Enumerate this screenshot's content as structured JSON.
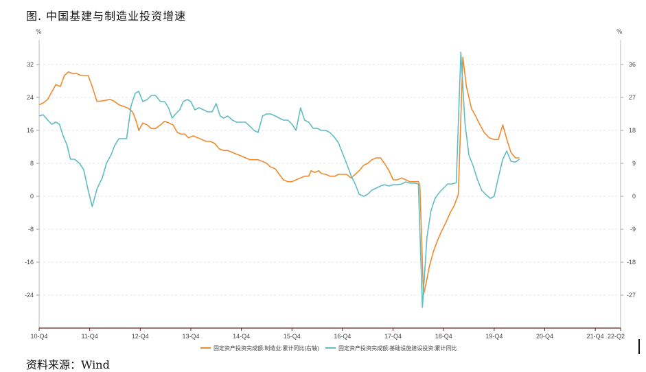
{
  "title": "图. 中国基建与制造业投资增速",
  "source": "资料来源：Wind",
  "chart_data": {
    "type": "line",
    "left_axis": {
      "unit": "%",
      "ticks": [
        -24,
        -16,
        -8,
        0,
        8,
        16,
        24,
        32
      ],
      "range": [
        -32,
        38
      ]
    },
    "right_axis": {
      "unit": "%",
      "ticks": [
        -27,
        -18,
        -9,
        0,
        9,
        18,
        27,
        36
      ],
      "range": [
        -36,
        42.75
      ]
    },
    "x_ticks": [
      "10-Q4",
      "11-Q4",
      "12-Q4",
      "13-Q4",
      "14-Q4",
      "15-Q4",
      "16-Q4",
      "17-Q4",
      "18-Q4",
      "19-Q4",
      "20-Q4",
      "21-Q4",
      "22-Q2"
    ],
    "x_range": [
      0,
      11.5
    ],
    "grid": true,
    "legend_position": "bottom",
    "series": [
      {
        "name": "固定资产投资完成额:制造业:累计同比(右轴)",
        "axis": "right",
        "color": "#ef8a2c",
        "points": [
          [
            0.0,
            25.0
          ],
          [
            0.08,
            25.5
          ],
          [
            0.17,
            26.5
          ],
          [
            0.25,
            28.5
          ],
          [
            0.33,
            30.5
          ],
          [
            0.42,
            30.0
          ],
          [
            0.5,
            33.0
          ],
          [
            0.58,
            34.0
          ],
          [
            0.67,
            33.5
          ],
          [
            0.75,
            33.5
          ],
          [
            0.83,
            33.0
          ],
          [
            0.9,
            33.0
          ],
          [
            0.97,
            33.0
          ],
          [
            1.05,
            30.0
          ],
          [
            1.14,
            26.0
          ],
          [
            1.22,
            26.0
          ],
          [
            1.3,
            26.2
          ],
          [
            1.4,
            26.5
          ],
          [
            1.48,
            26.0
          ],
          [
            1.58,
            25.0
          ],
          [
            1.68,
            24.5
          ],
          [
            1.77,
            24.0
          ],
          [
            1.85,
            23.0
          ],
          [
            1.92,
            20.5
          ],
          [
            1.97,
            18.0
          ],
          [
            2.05,
            20.0
          ],
          [
            2.14,
            19.5
          ],
          [
            2.22,
            18.5
          ],
          [
            2.3,
            18.5
          ],
          [
            2.4,
            19.5
          ],
          [
            2.48,
            20.5
          ],
          [
            2.57,
            20.0
          ],
          [
            2.65,
            19.5
          ],
          [
            2.73,
            17.5
          ],
          [
            2.8,
            17.0
          ],
          [
            2.88,
            17.0
          ],
          [
            2.95,
            16.0
          ],
          [
            3.05,
            16.5
          ],
          [
            3.14,
            16.0
          ],
          [
            3.22,
            15.5
          ],
          [
            3.3,
            15.0
          ],
          [
            3.38,
            15.0
          ],
          [
            3.47,
            14.5
          ],
          [
            3.56,
            13.0
          ],
          [
            3.65,
            12.5
          ],
          [
            3.73,
            12.5
          ],
          [
            3.82,
            12.0
          ],
          [
            3.91,
            11.5
          ],
          [
            4.0,
            11.0
          ],
          [
            4.08,
            10.5
          ],
          [
            4.17,
            10.0
          ],
          [
            4.25,
            10.0
          ],
          [
            4.33,
            10.0
          ],
          [
            4.42,
            9.5
          ],
          [
            4.5,
            9.0
          ],
          [
            4.58,
            8.0
          ],
          [
            4.67,
            7.5
          ],
          [
            4.75,
            6.0
          ],
          [
            4.83,
            4.5
          ],
          [
            4.92,
            4.0
          ],
          [
            5.0,
            4.0
          ],
          [
            5.08,
            4.5
          ],
          [
            5.17,
            5.0
          ],
          [
            5.25,
            5.5
          ],
          [
            5.33,
            5.5
          ],
          [
            5.38,
            7.0
          ],
          [
            5.45,
            6.5
          ],
          [
            5.53,
            7.0
          ],
          [
            5.58,
            6.2
          ],
          [
            5.67,
            6.0
          ],
          [
            5.75,
            5.5
          ],
          [
            5.85,
            5.5
          ],
          [
            5.92,
            6.0
          ],
          [
            6.0,
            6.0
          ],
          [
            6.08,
            6.0
          ],
          [
            6.17,
            5.0
          ],
          [
            6.25,
            6.0
          ],
          [
            6.33,
            7.0
          ],
          [
            6.42,
            8.5
          ],
          [
            6.5,
            9.0
          ],
          [
            6.58,
            10.0
          ],
          [
            6.67,
            10.5
          ],
          [
            6.75,
            10.5
          ],
          [
            6.83,
            9.0
          ],
          [
            6.92,
            7.0
          ],
          [
            7.0,
            4.5
          ],
          [
            7.08,
            4.5
          ],
          [
            7.17,
            5.0
          ],
          [
            7.25,
            4.5
          ],
          [
            7.33,
            4.0
          ],
          [
            7.42,
            4.0
          ],
          [
            7.5,
            4.0
          ],
          [
            7.53,
            3.0
          ],
          [
            7.6,
            -27.0
          ],
          [
            7.65,
            -24.0
          ],
          [
            7.72,
            -19.0
          ],
          [
            7.8,
            -15.0
          ],
          [
            7.88,
            -12.0
          ],
          [
            7.96,
            -9.5
          ],
          [
            8.05,
            -7.0
          ],
          [
            8.13,
            -4.5
          ],
          [
            8.21,
            -2.5
          ],
          [
            8.29,
            0.5
          ],
          [
            8.38,
            38.0
          ],
          [
            8.45,
            30.0
          ],
          [
            8.55,
            24.0
          ],
          [
            8.63,
            22.0
          ],
          [
            8.7,
            20.0
          ],
          [
            8.8,
            17.5
          ],
          [
            8.9,
            16.0
          ],
          [
            9.0,
            15.5
          ],
          [
            9.08,
            15.5
          ],
          [
            9.17,
            19.5
          ],
          [
            9.25,
            15.5
          ],
          [
            9.33,
            12.0
          ],
          [
            9.42,
            10.5
          ],
          [
            9.5,
            10.5
          ]
        ]
      },
      {
        "name": "固定资产投资完成额:基础设施建设投资:累计同比",
        "axis": "left",
        "color": "#5fbcc3",
        "points": [
          [
            0.0,
            19.5
          ],
          [
            0.08,
            19.8
          ],
          [
            0.17,
            18.5
          ],
          [
            0.25,
            17.5
          ],
          [
            0.33,
            18.0
          ],
          [
            0.4,
            17.5
          ],
          [
            0.48,
            14.5
          ],
          [
            0.55,
            12.5
          ],
          [
            0.62,
            9.0
          ],
          [
            0.7,
            9.0
          ],
          [
            0.8,
            8.0
          ],
          [
            0.88,
            6.5
          ],
          [
            0.97,
            1.5
          ],
          [
            1.05,
            -2.5
          ],
          [
            1.15,
            2.0
          ],
          [
            1.25,
            4.5
          ],
          [
            1.33,
            8.0
          ],
          [
            1.42,
            10.0
          ],
          [
            1.5,
            12.5
          ],
          [
            1.58,
            14.0
          ],
          [
            1.67,
            14.0
          ],
          [
            1.73,
            14.0
          ],
          [
            1.82,
            22.0
          ],
          [
            1.9,
            25.0
          ],
          [
            1.97,
            25.5
          ],
          [
            2.05,
            23.0
          ],
          [
            2.14,
            23.5
          ],
          [
            2.22,
            24.5
          ],
          [
            2.3,
            24.5
          ],
          [
            2.4,
            23.0
          ],
          [
            2.48,
            23.0
          ],
          [
            2.56,
            21.5
          ],
          [
            2.63,
            19.0
          ],
          [
            2.7,
            20.0
          ],
          [
            2.78,
            21.0
          ],
          [
            2.85,
            23.0
          ],
          [
            2.93,
            23.5
          ],
          [
            3.0,
            23.0
          ],
          [
            3.08,
            21.0
          ],
          [
            3.16,
            21.5
          ],
          [
            3.25,
            21.0
          ],
          [
            3.33,
            20.5
          ],
          [
            3.42,
            20.5
          ],
          [
            3.5,
            22.5
          ],
          [
            3.58,
            19.5
          ],
          [
            3.65,
            19.0
          ],
          [
            3.73,
            19.5
          ],
          [
            3.82,
            18.5
          ],
          [
            3.91,
            18.0
          ],
          [
            4.0,
            18.0
          ],
          [
            4.08,
            18.0
          ],
          [
            4.17,
            17.0
          ],
          [
            4.25,
            16.0
          ],
          [
            4.33,
            15.5
          ],
          [
            4.42,
            19.5
          ],
          [
            4.5,
            20.0
          ],
          [
            4.58,
            20.0
          ],
          [
            4.67,
            19.5
          ],
          [
            4.75,
            19.0
          ],
          [
            4.83,
            18.5
          ],
          [
            4.92,
            18.5
          ],
          [
            5.0,
            17.5
          ],
          [
            5.08,
            16.0
          ],
          [
            5.17,
            21.5
          ],
          [
            5.25,
            18.5
          ],
          [
            5.33,
            18.0
          ],
          [
            5.42,
            16.5
          ],
          [
            5.5,
            16.5
          ],
          [
            5.58,
            16.0
          ],
          [
            5.67,
            16.0
          ],
          [
            5.75,
            15.5
          ],
          [
            5.83,
            14.5
          ],
          [
            5.92,
            13.0
          ],
          [
            6.0,
            10.5
          ],
          [
            6.08,
            8.0
          ],
          [
            6.17,
            5.0
          ],
          [
            6.25,
            3.0
          ],
          [
            6.33,
            0.5
          ],
          [
            6.42,
            0.0
          ],
          [
            6.5,
            0.5
          ],
          [
            6.58,
            1.5
          ],
          [
            6.67,
            2.0
          ],
          [
            6.75,
            2.5
          ],
          [
            6.83,
            2.8
          ],
          [
            6.92,
            2.5
          ],
          [
            7.0,
            2.8
          ],
          [
            7.08,
            2.8
          ],
          [
            7.17,
            3.0
          ],
          [
            7.25,
            3.5
          ],
          [
            7.33,
            3.2
          ],
          [
            7.42,
            3.2
          ],
          [
            7.5,
            3.0
          ],
          [
            7.58,
            -27.0
          ],
          [
            7.67,
            -10.0
          ],
          [
            7.75,
            -3.5
          ],
          [
            7.83,
            -0.5
          ],
          [
            7.92,
            1.0
          ],
          [
            8.0,
            2.0
          ],
          [
            8.08,
            3.0
          ],
          [
            8.17,
            3.0
          ],
          [
            8.25,
            3.3
          ],
          [
            8.34,
            35.0
          ],
          [
            8.42,
            18.0
          ],
          [
            8.5,
            10.0
          ],
          [
            8.58,
            7.5
          ],
          [
            8.67,
            4.0
          ],
          [
            8.75,
            1.5
          ],
          [
            8.83,
            0.5
          ],
          [
            8.92,
            -0.5
          ],
          [
            9.0,
            0.0
          ],
          [
            9.08,
            4.5
          ],
          [
            9.17,
            9.0
          ],
          [
            9.25,
            11.0
          ],
          [
            9.33,
            8.5
          ],
          [
            9.42,
            8.3
          ],
          [
            9.5,
            9.0
          ]
        ]
      }
    ]
  }
}
